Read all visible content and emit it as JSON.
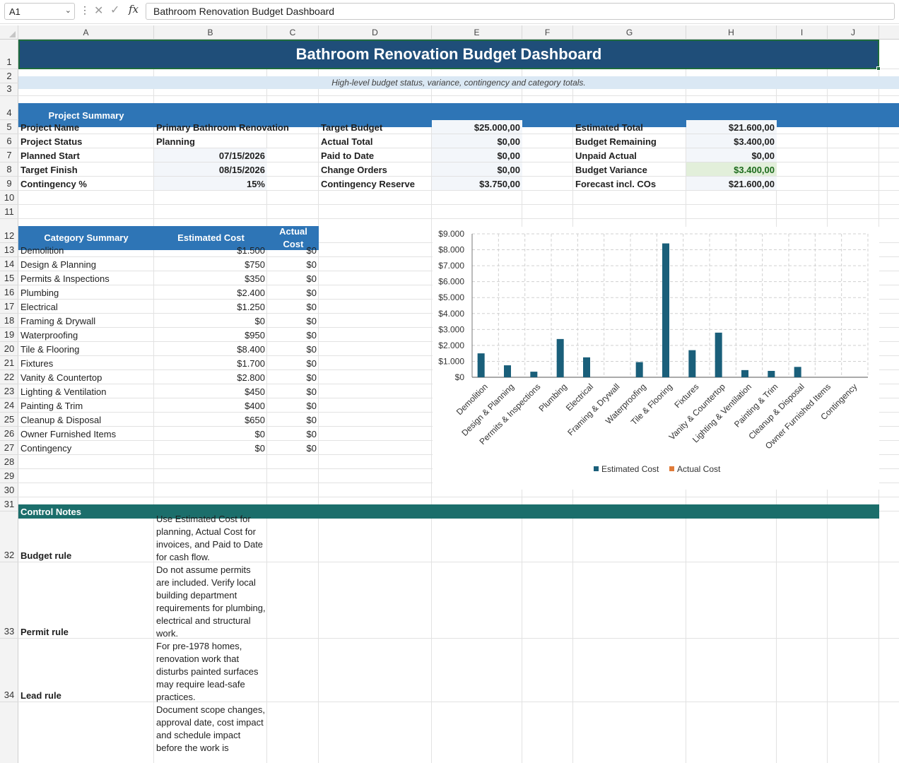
{
  "formula_bar": {
    "name_box": "A1",
    "fx_label": "fx",
    "content": "Bathroom Renovation Budget Dashboard"
  },
  "columns": [
    "A",
    "B",
    "C",
    "D",
    "E",
    "F",
    "G",
    "H",
    "I",
    "J"
  ],
  "rows": [
    "1",
    "2",
    "3",
    "4",
    "5",
    "6",
    "7",
    "8",
    "9",
    "10",
    "11",
    "12",
    "13",
    "14",
    "15",
    "16",
    "17",
    "18",
    "19",
    "20",
    "21",
    "22",
    "23",
    "24",
    "25",
    "26",
    "27",
    "28",
    "29",
    "30",
    "31",
    "32",
    "33",
    "34"
  ],
  "title": "Bathroom Renovation Budget Dashboard",
  "subtitle": "High-level budget status, variance, contingency and category totals.",
  "project_summary": {
    "heading": "Project Summary",
    "left": [
      {
        "label": "Project Name",
        "value": "Primary Bathroom Renovation",
        "align": "left"
      },
      {
        "label": "Project Status",
        "value": "Planning",
        "align": "left"
      },
      {
        "label": "Planned Start",
        "value": "07/15/2026",
        "align": "right"
      },
      {
        "label": "Target Finish",
        "value": "08/15/2026",
        "align": "right"
      },
      {
        "label": "Contingency %",
        "value": "15%",
        "align": "right"
      }
    ],
    "middle": [
      {
        "label": "Target Budget",
        "value": "$25.000,00"
      },
      {
        "label": "Actual Total",
        "value": "$0,00"
      },
      {
        "label": "Paid to Date",
        "value": "$0,00"
      },
      {
        "label": "Change Orders",
        "value": "$0,00"
      },
      {
        "label": "Contingency Reserve",
        "value": "$3.750,00"
      }
    ],
    "right": [
      {
        "label": "Estimated Total",
        "value": "$21.600,00"
      },
      {
        "label": "Budget Remaining",
        "value": "$3.400,00"
      },
      {
        "label": "Unpaid Actual",
        "value": "$0,00"
      },
      {
        "label": "Budget Variance",
        "value": "$3.400,00"
      },
      {
        "label": "Forecast incl. COs",
        "value": "$21.600,00"
      }
    ]
  },
  "category_summary": {
    "headers": [
      "Category Summary",
      "Estimated Cost",
      "Actual Cost"
    ],
    "rows": [
      {
        "category": "Demolition",
        "estimated": "$1.500",
        "actual": "$0"
      },
      {
        "category": "Design & Planning",
        "estimated": "$750",
        "actual": "$0"
      },
      {
        "category": "Permits & Inspections",
        "estimated": "$350",
        "actual": "$0"
      },
      {
        "category": "Plumbing",
        "estimated": "$2.400",
        "actual": "$0"
      },
      {
        "category": "Electrical",
        "estimated": "$1.250",
        "actual": "$0"
      },
      {
        "category": "Framing & Drywall",
        "estimated": "$0",
        "actual": "$0"
      },
      {
        "category": "Waterproofing",
        "estimated": "$950",
        "actual": "$0"
      },
      {
        "category": "Tile & Flooring",
        "estimated": "$8.400",
        "actual": "$0"
      },
      {
        "category": "Fixtures",
        "estimated": "$1.700",
        "actual": "$0"
      },
      {
        "category": "Vanity & Countertop",
        "estimated": "$2.800",
        "actual": "$0"
      },
      {
        "category": "Lighting & Ventilation",
        "estimated": "$450",
        "actual": "$0"
      },
      {
        "category": "Painting & Trim",
        "estimated": "$400",
        "actual": "$0"
      },
      {
        "category": "Cleanup & Disposal",
        "estimated": "$650",
        "actual": "$0"
      },
      {
        "category": "Owner Furnished Items",
        "estimated": "$0",
        "actual": "$0"
      },
      {
        "category": "Contingency",
        "estimated": "$0",
        "actual": "$0"
      }
    ]
  },
  "control_notes": {
    "heading": "Control Notes",
    "items": [
      {
        "label": "Budget rule",
        "text": "Use Estimated Cost for planning, Actual Cost for invoices, and Paid to Date for cash flow."
      },
      {
        "label": "Permit rule",
        "text": "Do not assume permits are included. Verify local building department requirements for plumbing, electrical and structural work."
      },
      {
        "label": "Lead rule",
        "text": "For pre-1978 homes, renovation work that disturbs painted surfaces may require lead-safe practices."
      },
      {
        "label": "",
        "text": "Document scope changes, approval date, cost impact and schedule impact before the work is"
      }
    ]
  },
  "colors": {
    "title_bg": "#1f4e79",
    "section_bg": "#2e75b6",
    "notes_bg": "#1b6e6b",
    "estimated_series": "#1a5f7a",
    "actual_series": "#e07b39",
    "positive_value": "#1d6b1d"
  },
  "chart_data": {
    "type": "bar",
    "categories": [
      "Demolition",
      "Design & Planning",
      "Permits & Inspections",
      "Plumbing",
      "Electrical",
      "Framing & Drywall",
      "Waterproofing",
      "Tile & Flooring",
      "Fixtures",
      "Vanity & Countertop",
      "Lighting & Ventilation",
      "Painting & Trim",
      "Cleanup & Disposal",
      "Owner Furnished Items",
      "Contingency"
    ],
    "series": [
      {
        "name": "Estimated Cost",
        "values": [
          1500,
          750,
          350,
          2400,
          1250,
          0,
          950,
          8400,
          1700,
          2800,
          450,
          400,
          650,
          0,
          0
        ]
      },
      {
        "name": "Actual Cost",
        "values": [
          0,
          0,
          0,
          0,
          0,
          0,
          0,
          0,
          0,
          0,
          0,
          0,
          0,
          0,
          0
        ]
      }
    ],
    "yticks": [
      "$0",
      "$1.000",
      "$2.000",
      "$3.000",
      "$4.000",
      "$5.000",
      "$6.000",
      "$7.000",
      "$8.000",
      "$9.000"
    ],
    "ylim": [
      0,
      9000
    ],
    "grid": true,
    "legend": "bottom",
    "title": "",
    "xlabel": "",
    "ylabel": ""
  }
}
